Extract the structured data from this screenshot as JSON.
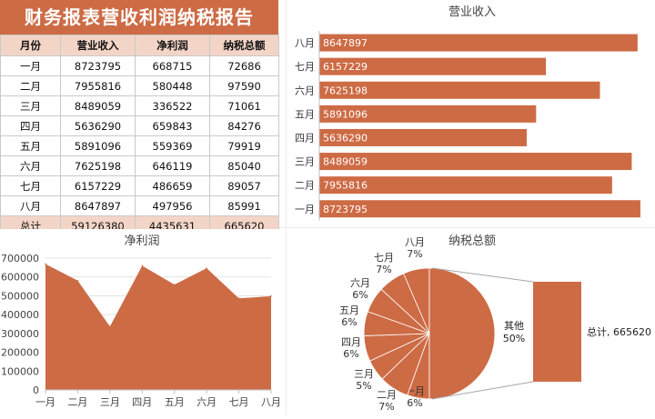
{
  "report": {
    "title": "财务报表营收利润纳税报告",
    "headers": [
      "月份",
      "营业收入",
      "净利润",
      "纳税总额"
    ],
    "rows": [
      [
        "一月",
        "8723795",
        "668715",
        "72686"
      ],
      [
        "二月",
        "7955816",
        "580448",
        "97590"
      ],
      [
        "三月",
        "8489059",
        "336522",
        "71061"
      ],
      [
        "四月",
        "5636290",
        "659843",
        "84276"
      ],
      [
        "五月",
        "5891096",
        "559369",
        "79919"
      ],
      [
        "六月",
        "7625198",
        "646119",
        "85040"
      ],
      [
        "七月",
        "6157229",
        "486659",
        "89057"
      ],
      [
        "八月",
        "8647897",
        "497956",
        "85991"
      ]
    ],
    "total": [
      "总计",
      "59126380",
      "4435631",
      "665620"
    ]
  },
  "chart_data": [
    {
      "type": "bar",
      "orientation": "horizontal",
      "title": "营业收入",
      "categories": [
        "一月",
        "二月",
        "三月",
        "四月",
        "五月",
        "六月",
        "七月",
        "八月"
      ],
      "values": [
        8723795,
        7955816,
        8489059,
        5636290,
        5891096,
        7625198,
        6157229,
        8647897
      ],
      "data_labels": true,
      "color": "#cd6b45"
    },
    {
      "type": "area",
      "title": "净利润",
      "categories": [
        "一月",
        "二月",
        "三月",
        "四月",
        "五月",
        "六月",
        "七月",
        "八月"
      ],
      "values": [
        668715,
        580448,
        336522,
        659843,
        559369,
        646119,
        486659,
        497956
      ],
      "ylim": [
        0,
        700000
      ],
      "yticks": [
        "0",
        "100000",
        "200000",
        "300000",
        "400000",
        "500000",
        "600000",
        "700000"
      ],
      "grid": true,
      "color": "#cd6b45"
    },
    {
      "type": "pie",
      "subtype": "pie-of-bar",
      "title": "纳税总额",
      "categories": [
        "一月",
        "二月",
        "三月",
        "四月",
        "五月",
        "六月",
        "七月",
        "八月"
      ],
      "values": [
        72686,
        97590,
        71061,
        84276,
        79919,
        85040,
        89057,
        85991
      ],
      "percent_labels": [
        "6%",
        "7%",
        "5%",
        "6%",
        "6%",
        "6%",
        "7%",
        "7%"
      ],
      "other_label": "其他",
      "other_percent": "50%",
      "secondary_label": "总计, 665620",
      "color": "#cd6b45"
    }
  ]
}
